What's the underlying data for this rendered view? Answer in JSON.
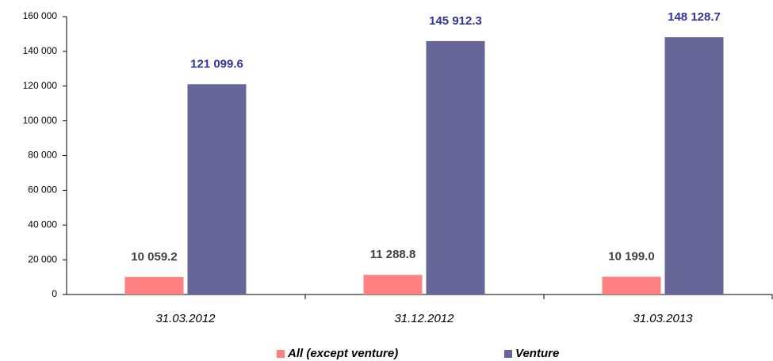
{
  "chart_data": {
    "type": "bar",
    "categories": [
      "31.03.2012",
      "31.12.2012",
      "31.03.2013"
    ],
    "series": [
      {
        "name": "All (except venture)",
        "color": "#ff8080",
        "label_color": "#404040",
        "values": [
          10059.2,
          11288.8,
          10199.0
        ],
        "value_labels": [
          "10 059.2",
          "11 288.8",
          "10 199.0"
        ]
      },
      {
        "name": "Venture",
        "color": "#666699",
        "label_color": "#333399",
        "values": [
          121099.6,
          145912.3,
          148128.7
        ],
        "value_labels": [
          "121 099.6",
          "145 912.3",
          "148 128.7"
        ]
      }
    ],
    "ylim": [
      0,
      160000
    ],
    "yticks": [
      0,
      {
        "value": 20000,
        "label": "20 000"
      },
      {
        "value": 40000,
        "label": "40 000"
      },
      {
        "value": 60000,
        "label": "60 000"
      },
      {
        "value": 80000,
        "label": "80 000"
      },
      {
        "value": 100000,
        "label": "100 000"
      },
      {
        "value": 120000,
        "label": "120 000"
      },
      {
        "value": 140000,
        "label": "140 000"
      },
      {
        "value": 160000,
        "label": "160 000"
      }
    ],
    "grid": false,
    "legend": "bottom"
  }
}
